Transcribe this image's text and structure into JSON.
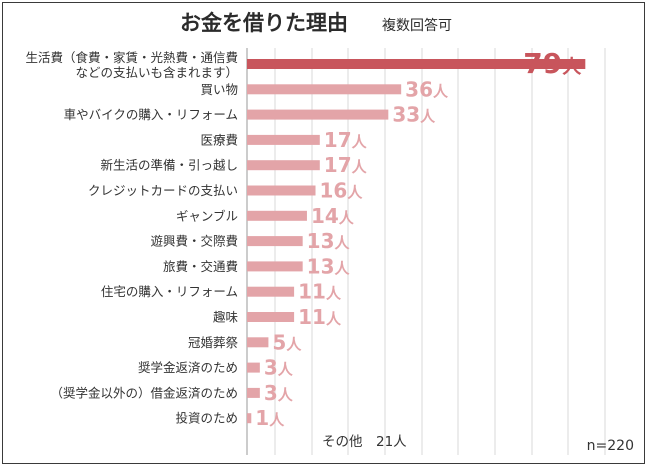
{
  "chart_data": {
    "type": "bar",
    "orientation": "horizontal",
    "title": "お金を借りた理由",
    "subtitle": "複数回答可",
    "unit": "人",
    "categories": [
      "生活費（食費・家賃・光熱費・通信費などの支払いも含まれます）",
      "買い物",
      "車やバイクの購入・リフォーム",
      "医療費",
      "新生活の準備・引っ越し",
      "クレジットカードの支払い",
      "ギャンブル",
      "遊興費・交際費",
      "旅費・交通費",
      "住宅の購入・リフォーム",
      "趣味",
      "冠婚葬祭",
      "奨学金返済のため",
      "（奨学金以外の）借金返済のため",
      "投資のため"
    ],
    "category_lines": [
      [
        "生活費（食費・家賃・光熱費・通信費",
        "などの支払いも含まれます）"
      ],
      [
        "買い物"
      ],
      [
        "車やバイクの購入・リフォーム"
      ],
      [
        "医療費"
      ],
      [
        "新生活の準備・引っ越し"
      ],
      [
        "クレジットカードの支払い"
      ],
      [
        "ギャンブル"
      ],
      [
        "遊興費・交際費"
      ],
      [
        "旅費・交通費"
      ],
      [
        "住宅の購入・リフォーム"
      ],
      [
        "趣味"
      ],
      [
        "冠婚葬祭"
      ],
      [
        "奨学金返済のため"
      ],
      [
        "（奨学金以外の）借金返済のため"
      ],
      [
        "投資のため"
      ]
    ],
    "values": [
      79,
      36,
      33,
      17,
      17,
      16,
      14,
      13,
      13,
      11,
      11,
      5,
      3,
      3,
      1
    ],
    "xlim": [
      0,
      85
    ],
    "grid": true,
    "colors": {
      "top": "#c8555c",
      "other": "#e3a4a8",
      "grid": "#d9d9d9"
    },
    "other_note": "その他　21人",
    "sample_size": "n=220"
  }
}
